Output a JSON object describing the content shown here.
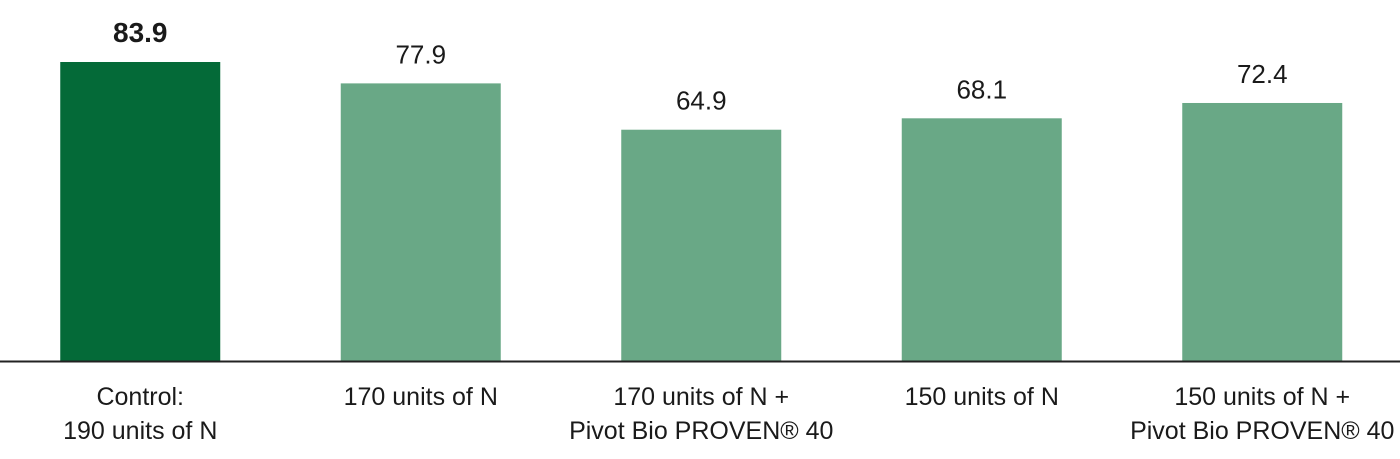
{
  "chart_data": {
    "type": "bar",
    "categories": [
      [
        "Control:",
        "190 units of N"
      ],
      [
        "170 units of N"
      ],
      [
        "170 units of N +",
        "Pivot Bio PROVEN® 40"
      ],
      [
        "150 units of N"
      ],
      [
        "150 units of N +",
        "Pivot Bio PROVEN® 40"
      ]
    ],
    "values": [
      83.9,
      77.9,
      64.9,
      68.1,
      72.4
    ],
    "value_labels": [
      "83.9",
      "77.9",
      "64.9",
      "68.1",
      "72.4"
    ],
    "highlight_index": 0,
    "colors": {
      "highlight": "#046a38",
      "default": "#69a886",
      "axis": "#222222"
    },
    "title": "",
    "xlabel": "",
    "ylabel": "",
    "ylim": [
      0,
      90
    ],
    "grid": false,
    "legend": "none"
  }
}
